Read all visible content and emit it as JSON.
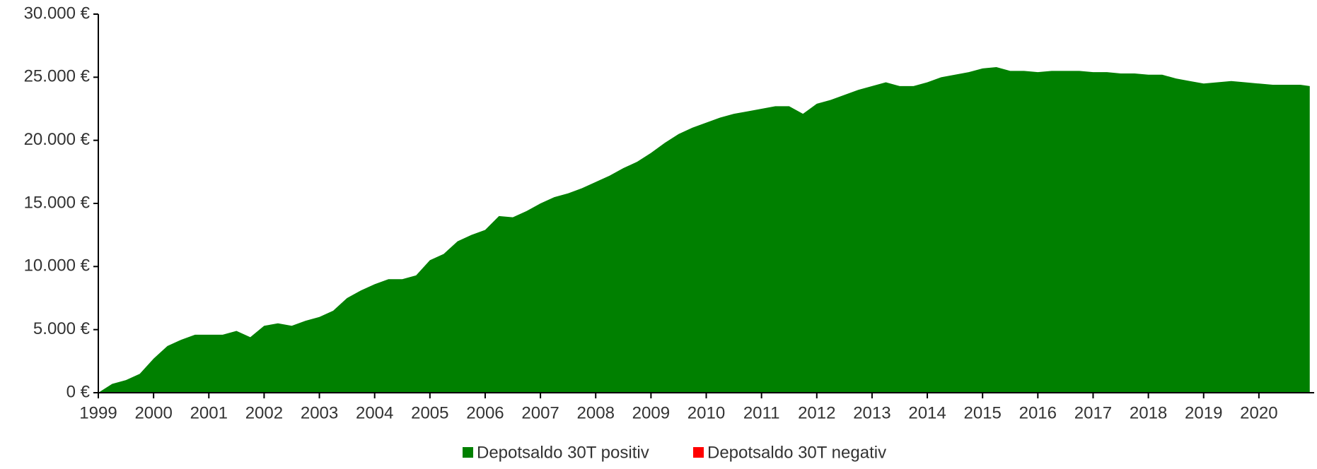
{
  "chart_data": {
    "type": "area",
    "x": [
      1999.0,
      1999.25,
      1999.5,
      1999.75,
      2000.0,
      2000.25,
      2000.5,
      2000.75,
      2001.0,
      2001.25,
      2001.5,
      2001.75,
      2002.0,
      2002.25,
      2002.5,
      2002.75,
      2003.0,
      2003.25,
      2003.5,
      2003.75,
      2004.0,
      2004.25,
      2004.5,
      2004.75,
      2005.0,
      2005.25,
      2005.5,
      2005.75,
      2006.0,
      2006.25,
      2006.5,
      2006.75,
      2007.0,
      2007.25,
      2007.5,
      2007.75,
      2008.0,
      2008.25,
      2008.5,
      2008.75,
      2009.0,
      2009.25,
      2009.5,
      2009.75,
      2010.0,
      2010.25,
      2010.5,
      2010.75,
      2011.0,
      2011.25,
      2011.5,
      2011.75,
      2012.0,
      2012.25,
      2012.5,
      2012.75,
      2013.0,
      2013.25,
      2013.5,
      2013.75,
      2014.0,
      2014.25,
      2014.5,
      2014.75,
      2015.0,
      2015.25,
      2015.5,
      2015.75,
      2016.0,
      2016.25,
      2016.5,
      2016.75,
      2017.0,
      2017.25,
      2017.5,
      2017.75,
      2018.0,
      2018.25,
      2018.5,
      2018.75,
      2019.0,
      2019.25,
      2019.5,
      2019.75,
      2020.0,
      2020.25,
      2020.5,
      2020.75,
      2020.92
    ],
    "series": [
      {
        "name": "Depotsaldo 30T positiv",
        "color": "#008000",
        "values": [
          0,
          700,
          1000,
          1500,
          2700,
          3700,
          4200,
          4600,
          4600,
          4600,
          4900,
          4400,
          5300,
          5500,
          5300,
          5700,
          6000,
          6500,
          7500,
          8100,
          8600,
          9000,
          9000,
          9300,
          10500,
          11000,
          12000,
          12500,
          12900,
          14000,
          13900,
          14400,
          15000,
          15500,
          15800,
          16200,
          16700,
          17200,
          17800,
          18300,
          19000,
          19800,
          20500,
          21000,
          21400,
          21800,
          22100,
          22300,
          22500,
          22700,
          22700,
          22100,
          22900,
          23200,
          23600,
          24000,
          24300,
          24600,
          24300,
          24300,
          24600,
          25000,
          25200,
          25400,
          25700,
          25800,
          25500,
          25500,
          25400,
          25500,
          25500,
          25500,
          25400,
          25400,
          25300,
          25300,
          25200,
          25200,
          24900,
          24700,
          24500,
          24600,
          24700,
          24600,
          24500,
          24400,
          24400,
          24400,
          24300
        ]
      },
      {
        "name": "Depotsaldo 30T negativ",
        "color": "#ff0000",
        "values": [
          0,
          0,
          0,
          0,
          0,
          0,
          0,
          0,
          0,
          0,
          0,
          0,
          0,
          0,
          0,
          0,
          0,
          0,
          0,
          0,
          0,
          0,
          0,
          0,
          0,
          0,
          0,
          0,
          0,
          0,
          0,
          0,
          0,
          0,
          0,
          0,
          0,
          0,
          0,
          0,
          0,
          0,
          0,
          0,
          0,
          0,
          0,
          0,
          0,
          0,
          0,
          0,
          0,
          0,
          0,
          0,
          0,
          0,
          0,
          0,
          0,
          0,
          0,
          0,
          0,
          0,
          0,
          0,
          0,
          0,
          0,
          0,
          0,
          0,
          0,
          0,
          0,
          0,
          0,
          0,
          0,
          0,
          0,
          0,
          0,
          0,
          0,
          0,
          0
        ]
      }
    ],
    "xlim": [
      1999,
      2021
    ],
    "xticks": [
      1999,
      2000,
      2001,
      2002,
      2003,
      2004,
      2005,
      2006,
      2007,
      2008,
      2009,
      2010,
      2011,
      2012,
      2013,
      2014,
      2015,
      2016,
      2017,
      2018,
      2019,
      2020
    ],
    "ylim": [
      0,
      30000
    ],
    "yticks": [
      {
        "value": 0,
        "label": "0 €"
      },
      {
        "value": 5000,
        "label": "5.000 €"
      },
      {
        "value": 10000,
        "label": "10.000 €"
      },
      {
        "value": 15000,
        "label": "15.000 €"
      },
      {
        "value": 20000,
        "label": "20.000 €"
      },
      {
        "value": 25000,
        "label": "25.000 €"
      },
      {
        "value": 30000,
        "label": "30.000 €"
      }
    ],
    "grid": false,
    "legend": "bottom"
  }
}
